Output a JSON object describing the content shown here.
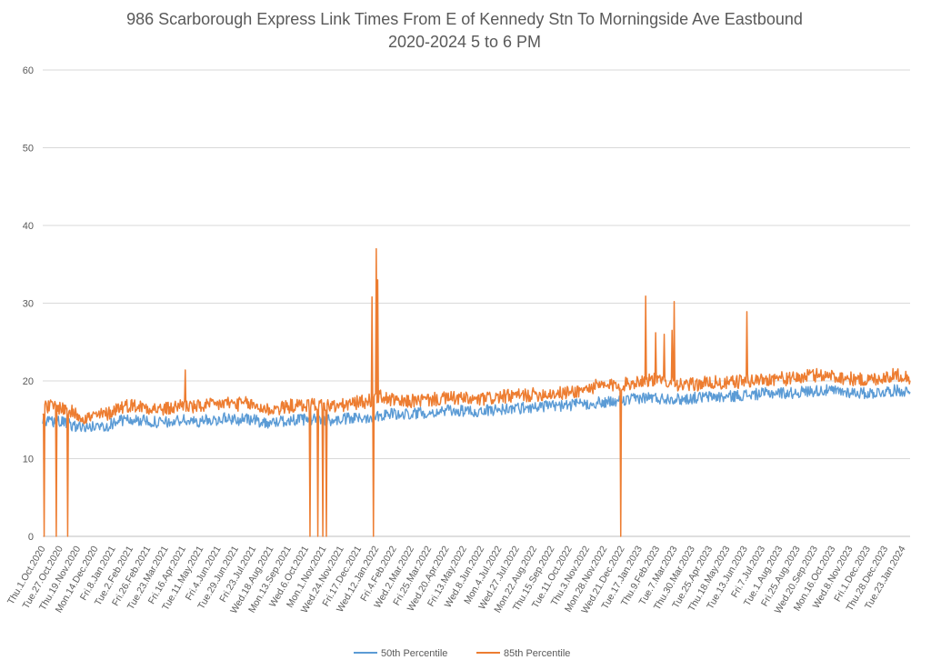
{
  "chart_data": {
    "type": "line",
    "title": "986 Scarborough Express Link Times From E of Kennedy Stn To Morningside Ave Eastbound",
    "subtitle": "2020-2024 5 to 6 PM",
    "xlabel": "",
    "ylabel": "",
    "ylim": [
      0,
      60
    ],
    "yticks": [
      0,
      10,
      20,
      30,
      40,
      50,
      60
    ],
    "grid": true,
    "legend_position": "bottom",
    "xdomain": [
      "2020-10-01",
      "2024-01-31"
    ],
    "xtick_labels": [
      "Thu.1.Oct.2020",
      "Tue.27.Oct.2020",
      "Thu.19.Nov.2020",
      "Mon.14.Dec.2020",
      "Fri.8.Jan.2021",
      "Tue.2.Feb.2021",
      "Fri.26.Feb.2021",
      "Tue.23.Mar.2021",
      "Fri.16.Apr.2021",
      "Tue.11.May.2021",
      "Fri.4.Jun.2021",
      "Tue.29.Jun.2021",
      "Fri.23.Jul.2021",
      "Wed.18.Aug.2021",
      "Mon.13.Sep.2021",
      "Wed.6.Oct.2021",
      "Mon.1.Nov.2021",
      "Wed.24.Nov.2021",
      "Fri.17.Dec.2021",
      "Wed.12.Jan.2022",
      "Fri.4.Feb.2022",
      "Wed.2.Mar.2022",
      "Fri.25.Mar.2022",
      "Wed.20.Apr.2022",
      "Fri.13.May.2022",
      "Wed.8.Jun.2022",
      "Mon.4.Jul.2022",
      "Wed.27.Jul.2022",
      "Mon.22.Aug.2022",
      "Thu.15.Sep.2022",
      "Tue.11.Oct.2022",
      "Thu.3.Nov.2022",
      "Mon.28.Nov.2022",
      "Wed.21.Dec.2022",
      "Tue.17.Jan.2023",
      "Thu.9.Feb.2023",
      "Tue.7.Mar.2023",
      "Thu.30.Mar.2023",
      "Tue.25.Apr.2023",
      "Thu.18.May.2023",
      "Tue.13.Jun.2023",
      "Fri.7.Jul.2023",
      "Tue.1.Aug.2023",
      "Fri.25.Aug.2023",
      "Wed.20.Sep.2023",
      "Mon.16.Oct.2023",
      "Wed.8.Nov.2023",
      "Fri.1.Dec.2023",
      "Thu.28.Dec.2023",
      "Tue.23.Jan.2024"
    ],
    "series": [
      {
        "name": "50th Percentile",
        "color": "#5b9bd5",
        "points": [
          [
            "2020-10-01",
            14.5
          ],
          [
            "2020-10-15",
            14.8
          ],
          [
            "2020-11-01",
            14.6
          ],
          [
            "2020-11-15",
            14.2
          ],
          [
            "2020-12-01",
            14.0
          ],
          [
            "2020-12-15",
            14.1
          ],
          [
            "2021-01-01",
            14.3
          ],
          [
            "2021-01-15",
            14.9
          ],
          [
            "2021-02-01",
            15.0
          ],
          [
            "2021-02-15",
            14.9
          ],
          [
            "2021-03-01",
            14.8
          ],
          [
            "2021-03-15",
            14.6
          ],
          [
            "2021-04-01",
            14.7
          ],
          [
            "2021-04-15",
            15.0
          ],
          [
            "2021-05-01",
            14.7
          ],
          [
            "2021-05-15",
            14.9
          ],
          [
            "2021-06-01",
            15.0
          ],
          [
            "2021-06-15",
            15.2
          ],
          [
            "2021-07-01",
            15.0
          ],
          [
            "2021-07-15",
            15.1
          ],
          [
            "2021-08-01",
            14.8
          ],
          [
            "2021-08-15",
            14.6
          ],
          [
            "2021-09-01",
            14.8
          ],
          [
            "2021-09-15",
            15.0
          ],
          [
            "2021-10-01",
            15.0
          ],
          [
            "2021-10-15",
            15.1
          ],
          [
            "2021-11-01",
            15.0
          ],
          [
            "2021-11-15",
            14.9
          ],
          [
            "2021-12-01",
            15.1
          ],
          [
            "2021-12-15",
            15.2
          ],
          [
            "2022-01-01",
            15.3
          ],
          [
            "2022-01-15",
            15.6
          ],
          [
            "2022-02-01",
            15.8
          ],
          [
            "2022-02-15",
            15.6
          ],
          [
            "2022-03-01",
            15.8
          ],
          [
            "2022-03-15",
            15.9
          ],
          [
            "2022-04-01",
            16.0
          ],
          [
            "2022-04-15",
            16.1
          ],
          [
            "2022-05-01",
            16.2
          ],
          [
            "2022-05-15",
            16.1
          ],
          [
            "2022-06-01",
            16.0
          ],
          [
            "2022-06-15",
            16.2
          ],
          [
            "2022-07-01",
            16.3
          ],
          [
            "2022-07-15",
            16.4
          ],
          [
            "2022-08-01",
            16.5
          ],
          [
            "2022-08-15",
            16.6
          ],
          [
            "2022-09-01",
            16.7
          ],
          [
            "2022-09-15",
            16.8
          ],
          [
            "2022-10-01",
            16.8
          ],
          [
            "2022-10-15",
            16.9
          ],
          [
            "2022-11-01",
            17.0
          ],
          [
            "2022-11-15",
            17.2
          ],
          [
            "2022-12-01",
            17.2
          ],
          [
            "2022-12-15",
            17.3
          ],
          [
            "2023-01-01",
            17.5
          ],
          [
            "2023-01-15",
            17.8
          ],
          [
            "2023-02-01",
            17.9
          ],
          [
            "2023-02-15",
            17.7
          ],
          [
            "2023-03-01",
            17.8
          ],
          [
            "2023-03-15",
            17.6
          ],
          [
            "2023-04-01",
            17.8
          ],
          [
            "2023-04-15",
            17.9
          ],
          [
            "2023-05-01",
            18.0
          ],
          [
            "2023-05-15",
            17.9
          ],
          [
            "2023-06-01",
            18.1
          ],
          [
            "2023-06-15",
            18.2
          ],
          [
            "2023-07-01",
            18.3
          ],
          [
            "2023-07-15",
            18.4
          ],
          [
            "2023-08-01",
            18.5
          ],
          [
            "2023-08-15",
            18.4
          ],
          [
            "2023-09-01",
            18.6
          ],
          [
            "2023-09-15",
            18.7
          ],
          [
            "2023-10-01",
            18.8
          ],
          [
            "2023-10-15",
            18.7
          ],
          [
            "2023-11-01",
            18.6
          ],
          [
            "2023-11-15",
            18.5
          ],
          [
            "2023-12-01",
            18.4
          ],
          [
            "2023-12-15",
            18.5
          ],
          [
            "2024-01-01",
            18.7
          ],
          [
            "2024-01-15",
            18.8
          ],
          [
            "2024-01-31",
            18.6
          ]
        ]
      },
      {
        "name": "85th Percentile",
        "color": "#ed7d31",
        "points": [
          [
            "2020-10-01",
            16.5
          ],
          [
            "2020-10-15",
            16.8
          ],
          [
            "2020-11-01",
            16.4
          ],
          [
            "2020-11-15",
            15.8
          ],
          [
            "2020-12-01",
            15.2
          ],
          [
            "2020-12-15",
            15.5
          ],
          [
            "2021-01-01",
            15.8
          ],
          [
            "2021-01-15",
            16.6
          ],
          [
            "2021-02-01",
            16.9
          ],
          [
            "2021-02-15",
            16.7
          ],
          [
            "2021-03-01",
            16.6
          ],
          [
            "2021-03-15",
            16.3
          ],
          [
            "2021-04-01",
            16.5
          ],
          [
            "2021-04-15",
            17.0
          ],
          [
            "2021-05-01",
            16.6
          ],
          [
            "2021-05-15",
            16.8
          ],
          [
            "2021-06-01",
            16.9
          ],
          [
            "2021-06-15",
            17.2
          ],
          [
            "2021-07-01",
            17.0
          ],
          [
            "2021-07-15",
            17.1
          ],
          [
            "2021-08-01",
            16.6
          ],
          [
            "2021-08-15",
            16.3
          ],
          [
            "2021-09-01",
            16.5
          ],
          [
            "2021-09-15",
            16.8
          ],
          [
            "2021-10-01",
            16.8
          ],
          [
            "2021-10-15",
            17.0
          ],
          [
            "2021-11-01",
            16.9
          ],
          [
            "2021-11-15",
            16.7
          ],
          [
            "2021-12-01",
            16.9
          ],
          [
            "2021-12-15",
            17.2
          ],
          [
            "2022-01-01",
            17.4
          ],
          [
            "2022-01-15",
            18.0
          ],
          [
            "2022-02-01",
            17.6
          ],
          [
            "2022-02-15",
            17.2
          ],
          [
            "2022-03-01",
            17.4
          ],
          [
            "2022-03-15",
            17.5
          ],
          [
            "2022-04-01",
            17.6
          ],
          [
            "2022-04-15",
            17.7
          ],
          [
            "2022-05-01",
            17.8
          ],
          [
            "2022-05-15",
            17.7
          ],
          [
            "2022-06-01",
            17.5
          ],
          [
            "2022-06-15",
            17.7
          ],
          [
            "2022-07-01",
            17.9
          ],
          [
            "2022-07-15",
            18.0
          ],
          [
            "2022-08-01",
            18.1
          ],
          [
            "2022-08-15",
            18.2
          ],
          [
            "2022-09-01",
            18.3
          ],
          [
            "2022-09-15",
            18.4
          ],
          [
            "2022-10-01",
            18.4
          ],
          [
            "2022-10-15",
            18.6
          ],
          [
            "2022-11-01",
            18.9
          ],
          [
            "2022-11-15",
            19.3
          ],
          [
            "2022-12-01",
            19.3
          ],
          [
            "2022-12-15",
            19.5
          ],
          [
            "2023-01-01",
            19.6
          ],
          [
            "2023-01-15",
            20.0
          ],
          [
            "2023-02-01",
            20.2
          ],
          [
            "2023-02-15",
            19.9
          ],
          [
            "2023-03-01",
            20.1
          ],
          [
            "2023-03-15",
            19.4
          ],
          [
            "2023-04-01",
            19.5
          ],
          [
            "2023-04-15",
            19.7
          ],
          [
            "2023-05-01",
            19.8
          ],
          [
            "2023-05-15",
            19.6
          ],
          [
            "2023-06-01",
            19.9
          ],
          [
            "2023-06-15",
            20.0
          ],
          [
            "2023-07-01",
            20.1
          ],
          [
            "2023-07-15",
            20.2
          ],
          [
            "2023-08-01",
            20.4
          ],
          [
            "2023-08-15",
            20.2
          ],
          [
            "2023-09-01",
            20.5
          ],
          [
            "2023-09-15",
            20.7
          ],
          [
            "2023-10-01",
            20.8
          ],
          [
            "2023-10-15",
            20.6
          ],
          [
            "2023-11-01",
            20.4
          ],
          [
            "2023-11-15",
            20.2
          ],
          [
            "2023-12-01",
            20.1
          ],
          [
            "2023-12-15",
            20.3
          ],
          [
            "2024-01-01",
            20.6
          ],
          [
            "2024-01-15",
            20.8
          ],
          [
            "2024-01-31",
            20.4
          ]
        ],
        "spikes": [
          [
            "2020-10-03",
            0
          ],
          [
            "2020-10-20",
            0
          ],
          [
            "2020-11-05",
            0
          ],
          [
            "2021-04-19",
            21.4
          ],
          [
            "2021-10-11",
            0
          ],
          [
            "2021-10-22",
            0
          ],
          [
            "2021-10-29",
            0
          ],
          [
            "2021-11-03",
            0
          ],
          [
            "2022-01-06",
            30.8
          ],
          [
            "2022-01-08",
            0
          ],
          [
            "2022-01-12",
            37.0
          ],
          [
            "2022-01-14",
            33.0
          ],
          [
            "2022-12-21",
            0
          ],
          [
            "2023-01-25",
            30.9
          ],
          [
            "2023-02-08",
            26.2
          ],
          [
            "2023-02-20",
            26.0
          ],
          [
            "2023-03-03",
            26.5
          ],
          [
            "2023-03-06",
            30.2
          ],
          [
            "2023-06-16",
            28.9
          ]
        ]
      }
    ]
  }
}
